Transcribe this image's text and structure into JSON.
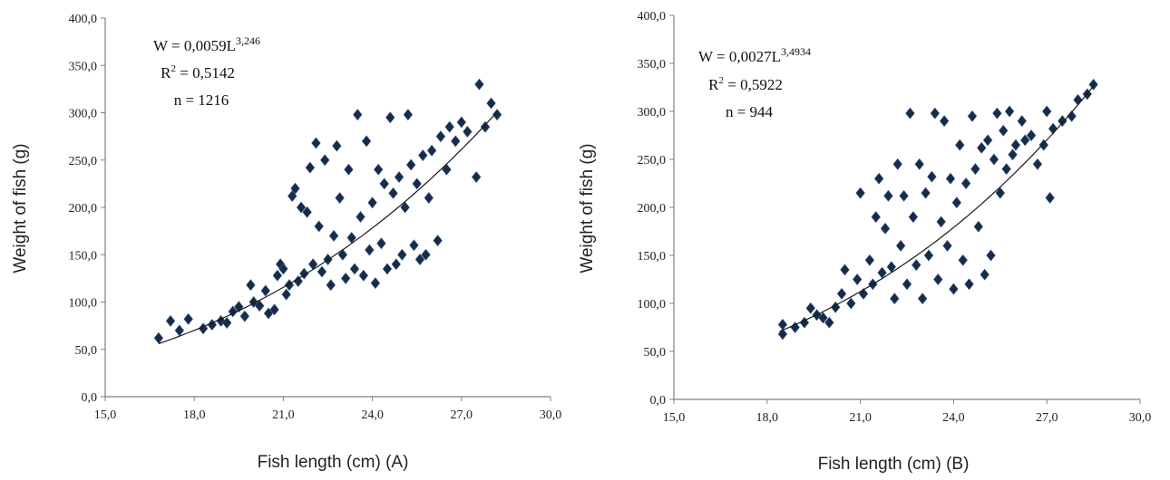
{
  "chart_data": [
    {
      "type": "scatter",
      "xlabel": "Fish length (cm) (A)",
      "ylabel": "Weight of fish (g)",
      "xlim": [
        15,
        30
      ],
      "ylim": [
        0,
        400
      ],
      "xticks": [
        "15,0",
        "18,0",
        "21,0",
        "24,0",
        "27,0",
        "30,0"
      ],
      "yticks": [
        "0,0",
        "50,0",
        "100,0",
        "150,0",
        "200,0",
        "250,0",
        "300,0",
        "350,0",
        "400,0"
      ],
      "equation": {
        "base": "W = 0,0059L",
        "exp": "3,246"
      },
      "r2": {
        "base": "R",
        "sup": "2",
        "rest": " = 0,5142"
      },
      "n": "n = 1216",
      "fit": {
        "a": 0.0059,
        "b": 3.246,
        "xrange": [
          16.8,
          28.2
        ]
      },
      "marker_color": "#1b2a45",
      "points": [
        [
          16.8,
          62
        ],
        [
          17.2,
          80
        ],
        [
          17.5,
          70
        ],
        [
          17.8,
          82
        ],
        [
          18.3,
          72
        ],
        [
          18.6,
          76
        ],
        [
          18.9,
          80
        ],
        [
          19.1,
          78
        ],
        [
          19.3,
          90
        ],
        [
          19.5,
          95
        ],
        [
          19.7,
          85
        ],
        [
          19.9,
          118
        ],
        [
          20.0,
          100
        ],
        [
          20.2,
          96
        ],
        [
          20.4,
          112
        ],
        [
          20.5,
          88
        ],
        [
          20.7,
          92
        ],
        [
          20.8,
          128
        ],
        [
          20.9,
          140
        ],
        [
          21.0,
          135
        ],
        [
          21.1,
          108
        ],
        [
          21.2,
          118
        ],
        [
          21.3,
          212
        ],
        [
          21.4,
          220
        ],
        [
          21.5,
          122
        ],
        [
          21.6,
          200
        ],
        [
          21.7,
          130
        ],
        [
          21.8,
          195
        ],
        [
          21.9,
          242
        ],
        [
          22.0,
          140
        ],
        [
          22.1,
          268
        ],
        [
          22.2,
          180
        ],
        [
          22.3,
          132
        ],
        [
          22.4,
          250
        ],
        [
          22.5,
          145
        ],
        [
          22.6,
          118
        ],
        [
          22.7,
          170
        ],
        [
          22.8,
          265
        ],
        [
          22.9,
          210
        ],
        [
          23.0,
          150
        ],
        [
          23.1,
          125
        ],
        [
          23.2,
          240
        ],
        [
          23.3,
          168
        ],
        [
          23.4,
          135
        ],
        [
          23.5,
          298
        ],
        [
          23.6,
          190
        ],
        [
          23.7,
          128
        ],
        [
          23.8,
          270
        ],
        [
          23.9,
          155
        ],
        [
          24.0,
          205
        ],
        [
          24.1,
          120
        ],
        [
          24.2,
          240
        ],
        [
          24.3,
          162
        ],
        [
          24.4,
          225
        ],
        [
          24.5,
          135
        ],
        [
          24.6,
          295
        ],
        [
          24.7,
          215
        ],
        [
          24.8,
          140
        ],
        [
          24.9,
          232
        ],
        [
          25.0,
          150
        ],
        [
          25.1,
          200
        ],
        [
          25.2,
          298
        ],
        [
          25.3,
          245
        ],
        [
          25.4,
          160
        ],
        [
          25.5,
          225
        ],
        [
          25.6,
          145
        ],
        [
          25.7,
          255
        ],
        [
          25.8,
          150
        ],
        [
          25.9,
          210
        ],
        [
          26.0,
          260
        ],
        [
          26.2,
          165
        ],
        [
          26.3,
          275
        ],
        [
          26.5,
          240
        ],
        [
          26.6,
          285
        ],
        [
          26.8,
          270
        ],
        [
          27.0,
          290
        ],
        [
          27.2,
          280
        ],
        [
          27.5,
          232
        ],
        [
          27.6,
          330
        ],
        [
          27.8,
          285
        ],
        [
          28.0,
          310
        ],
        [
          28.2,
          298
        ]
      ]
    },
    {
      "type": "scatter",
      "xlabel": "Fish length (cm) (B)",
      "ylabel": "Weight of fish (g)",
      "xlim": [
        15,
        30
      ],
      "ylim": [
        0,
        400
      ],
      "xticks": [
        "15,0",
        "18,0",
        "21,0",
        "24,0",
        "27,0",
        "30,0"
      ],
      "yticks": [
        "0,0",
        "50,0",
        "100,0",
        "150,0",
        "200,0",
        "250,0",
        "300,0",
        "350,0",
        "400,0"
      ],
      "equation": {
        "base": "W = 0,0027L",
        "exp": "3,4934"
      },
      "r2": {
        "base": "R",
        "sup": "2",
        "rest": " = 0,5922"
      },
      "n": "n = 944",
      "fit": {
        "a": 0.0027,
        "b": 3.4934,
        "xrange": [
          18.4,
          28.5
        ]
      },
      "marker_color": "#1b2a45",
      "points": [
        [
          18.5,
          68
        ],
        [
          18.5,
          78
        ],
        [
          18.9,
          75
        ],
        [
          19.2,
          80
        ],
        [
          19.4,
          95
        ],
        [
          19.6,
          88
        ],
        [
          19.8,
          85
        ],
        [
          20.0,
          80
        ],
        [
          20.2,
          96
        ],
        [
          20.4,
          110
        ],
        [
          20.5,
          135
        ],
        [
          20.7,
          100
        ],
        [
          20.9,
          125
        ],
        [
          21.0,
          215
        ],
        [
          21.1,
          110
        ],
        [
          21.3,
          145
        ],
        [
          21.4,
          120
        ],
        [
          21.5,
          190
        ],
        [
          21.6,
          230
        ],
        [
          21.7,
          132
        ],
        [
          21.8,
          178
        ],
        [
          21.9,
          212
        ],
        [
          22.0,
          138
        ],
        [
          22.1,
          105
        ],
        [
          22.2,
          245
        ],
        [
          22.3,
          160
        ],
        [
          22.4,
          212
        ],
        [
          22.5,
          120
        ],
        [
          22.6,
          298
        ],
        [
          22.7,
          190
        ],
        [
          22.8,
          140
        ],
        [
          22.9,
          245
        ],
        [
          23.0,
          105
        ],
        [
          23.1,
          215
        ],
        [
          23.2,
          150
        ],
        [
          23.3,
          232
        ],
        [
          23.4,
          298
        ],
        [
          23.5,
          125
        ],
        [
          23.6,
          185
        ],
        [
          23.7,
          290
        ],
        [
          23.8,
          160
        ],
        [
          23.9,
          230
        ],
        [
          24.0,
          115
        ],
        [
          24.1,
          205
        ],
        [
          24.2,
          265
        ],
        [
          24.3,
          145
        ],
        [
          24.4,
          225
        ],
        [
          24.5,
          120
        ],
        [
          24.6,
          295
        ],
        [
          24.7,
          240
        ],
        [
          24.8,
          180
        ],
        [
          24.9,
          262
        ],
        [
          25.0,
          130
        ],
        [
          25.1,
          270
        ],
        [
          25.2,
          150
        ],
        [
          25.3,
          250
        ],
        [
          25.4,
          298
        ],
        [
          25.5,
          215
        ],
        [
          25.6,
          280
        ],
        [
          25.7,
          240
        ],
        [
          25.8,
          300
        ],
        [
          25.9,
          255
        ],
        [
          26.0,
          265
        ],
        [
          26.2,
          290
        ],
        [
          26.3,
          270
        ],
        [
          26.5,
          275
        ],
        [
          26.7,
          245
        ],
        [
          26.9,
          265
        ],
        [
          27.0,
          300
        ],
        [
          27.1,
          210
        ],
        [
          27.2,
          282
        ],
        [
          27.5,
          290
        ],
        [
          27.8,
          295
        ],
        [
          28.0,
          312
        ],
        [
          28.3,
          318
        ],
        [
          28.5,
          328
        ]
      ]
    }
  ]
}
